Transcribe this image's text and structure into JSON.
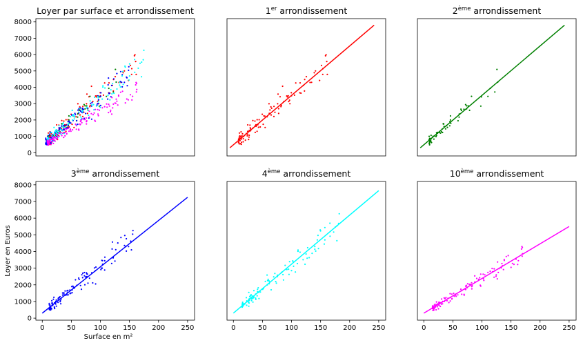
{
  "figure": {
    "ylabel": "Loyer en Euros",
    "xlabel": "Surface en m²"
  },
  "chart_data": [
    {
      "type": "scatter",
      "title": "Loyer par surface et arrondissement",
      "title_parts": [
        {
          "t": "Loyer par surface et arrondissement",
          "sup": false
        }
      ],
      "xlim": [
        -5,
        270
      ],
      "ylim": [
        -200,
        8200
      ],
      "yticks": [
        0,
        1000,
        2000,
        3000,
        4000,
        5000,
        6000,
        7000,
        8000
      ],
      "xticks": [],
      "show_yticks": true,
      "show_xticks": false,
      "series_ref": "all",
      "colors": [
        "#ff0000",
        "#008000",
        "#0000ff",
        "#00ffff",
        "#ff00ff"
      ]
    },
    {
      "type": "scatter",
      "title": "1er arrondissement",
      "title_parts": [
        {
          "t": "1",
          "sup": false
        },
        {
          "t": "er",
          "sup": true
        },
        {
          "t": " arrondissement",
          "sup": false
        }
      ],
      "xlim": [
        -5,
        270
      ],
      "ylim": [
        -200,
        8200
      ],
      "show_yticks": false,
      "show_xticks": false,
      "color": "#ff0000",
      "regression": {
        "x": [
          0,
          250
        ],
        "y": [
          300,
          7800
        ]
      },
      "seed": 11,
      "n": 110,
      "xmin": 15,
      "xmax": 170,
      "slope": 30,
      "intercept": 300,
      "noise": 420
    },
    {
      "type": "scatter",
      "title": "2ème arrondissement",
      "title_parts": [
        {
          "t": "2",
          "sup": false
        },
        {
          "t": "ème",
          "sup": true
        },
        {
          "t": " arrondissement",
          "sup": false
        }
      ],
      "xlim": [
        -5,
        270
      ],
      "ylim": [
        -200,
        8200
      ],
      "show_yticks": false,
      "show_xticks": false,
      "color": "#008000",
      "regression": {
        "x": [
          0,
          250
        ],
        "y": [
          300,
          7800
        ]
      },
      "seed": 23,
      "n": 60,
      "xmin": 15,
      "xmax": 135,
      "slope": 30,
      "intercept": 300,
      "noise": 330
    },
    {
      "type": "scatter",
      "title": "3ème arrondissement",
      "title_parts": [
        {
          "t": "3",
          "sup": false
        },
        {
          "t": "ème",
          "sup": true
        },
        {
          "t": " arrondissement",
          "sup": false
        }
      ],
      "xlim": [
        -11,
        262
      ],
      "ylim": [
        -120,
        8200
      ],
      "xticks": [
        0,
        50,
        100,
        150,
        200,
        250
      ],
      "yticks": [
        0,
        1000,
        2000,
        3000,
        4000,
        5000,
        6000,
        7000,
        8000
      ],
      "show_yticks": true,
      "show_xticks": true,
      "color": "#0000ff",
      "regression": {
        "x": [
          0,
          250
        ],
        "y": [
          300,
          7250
        ]
      },
      "seed": 37,
      "n": 120,
      "xmin": 12,
      "xmax": 160,
      "slope": 27.8,
      "intercept": 300,
      "noise": 380
    },
    {
      "type": "scatter",
      "title": "4ème arrondissement",
      "title_parts": [
        {
          "t": "4",
          "sup": false
        },
        {
          "t": "ème",
          "sup": true
        },
        {
          "t": " arrondissement",
          "sup": false
        }
      ],
      "xlim": [
        -11,
        262
      ],
      "ylim": [
        -120,
        8200
      ],
      "xticks": [
        0,
        50,
        100,
        150,
        200,
        250
      ],
      "show_yticks": false,
      "show_xticks": true,
      "color": "#00ffff",
      "regression": {
        "x": [
          0,
          250
        ],
        "y": [
          300,
          7650
        ]
      },
      "seed": 41,
      "n": 110,
      "xmin": 15,
      "xmax": 185,
      "slope": 29.4,
      "intercept": 300,
      "noise": 340
    },
    {
      "type": "scatter",
      "title": "10ème arrondissement",
      "title_parts": [
        {
          "t": "10",
          "sup": false
        },
        {
          "t": "ème",
          "sup": true
        },
        {
          "t": " arrondissement",
          "sup": false
        }
      ],
      "xlim": [
        -11,
        262
      ],
      "ylim": [
        -120,
        8200
      ],
      "xticks": [
        0,
        50,
        100,
        150,
        200,
        250
      ],
      "show_yticks": false,
      "show_xticks": true,
      "color": "#ff00ff",
      "regression": {
        "x": [
          0,
          250
        ],
        "y": [
          300,
          5500
        ]
      },
      "seed": 53,
      "n": 120,
      "xmin": 15,
      "xmax": 170,
      "slope": 20.8,
      "intercept": 300,
      "noise": 260
    }
  ]
}
